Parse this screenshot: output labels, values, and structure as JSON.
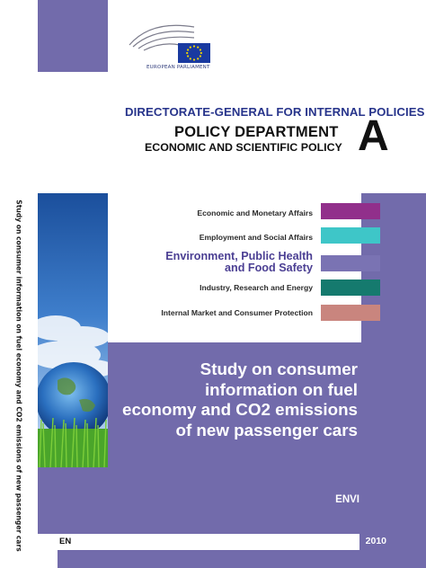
{
  "spine": {
    "text": "Study on consumer information on fuel economy and CO2 emissions of new passenger cars"
  },
  "logo": {
    "org": "EUROPEAN PARLIAMENT"
  },
  "header": {
    "directorate": "DIRECTORATE-GENERAL FOR INTERNAL POLICIES",
    "department": "POLICY DEPARTMENT",
    "subtitle": "ECONOMIC AND SCIENTIFIC POLICY",
    "letter": "A"
  },
  "policy_areas": [
    {
      "label": "Economic and Monetary Affairs",
      "color": "#912f8b"
    },
    {
      "label": "Employment and Social Affairs",
      "color": "#3ec6c8"
    },
    {
      "label_line1": "Environment, Public Health",
      "label_line2": "and Food Safety",
      "color": "#7a73b3"
    },
    {
      "label": "Industry, Research and Energy",
      "color": "#157a6e"
    },
    {
      "label": "Internal Market and Consumer Protection",
      "color": "#c9857e"
    }
  ],
  "study": {
    "title_lines": [
      "Study on consumer",
      "information on fuel",
      "economy and CO2 emissions",
      "of new passenger cars"
    ],
    "committee": "ENVI"
  },
  "footer": {
    "language": "EN",
    "year": "2010"
  },
  "colors": {
    "band": "#726bab",
    "directorate_blue": "#27348b"
  }
}
